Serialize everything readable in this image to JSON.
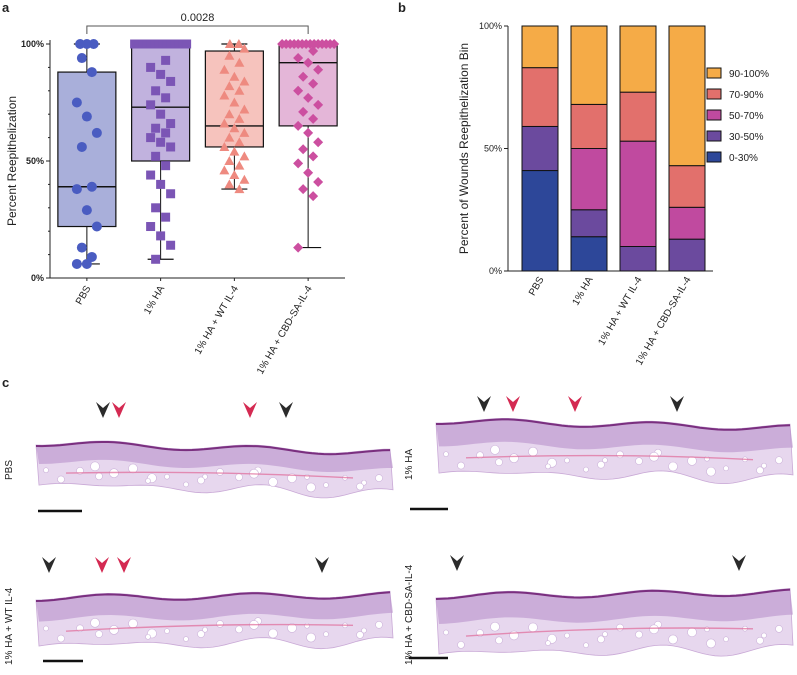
{
  "panel_labels": {
    "a": "a",
    "b": "b",
    "c": "c"
  },
  "chart_data": [
    {
      "type": "scatter",
      "subtype": "box-plot-with-points",
      "ylabel": "Percent Reepithelization",
      "xlabel": "",
      "ylim": [
        0,
        100
      ],
      "yticks": [
        {
          "value": 0,
          "label": "0%"
        },
        {
          "value": 50,
          "label": "50%"
        },
        {
          "value": 100,
          "label": "100%"
        }
      ],
      "categories": [
        "PBS",
        "1% HA",
        "1% HA + WT IL-4",
        "1% HA + CBD-SA-IL-4"
      ],
      "significance": {
        "from": 0,
        "to": 3,
        "label": "0.0028"
      },
      "series": [
        {
          "marker": "circle",
          "color": "#4a5cc1",
          "fill": "#9aa1d4",
          "box": {
            "min": 6,
            "q1": 22,
            "median": 39,
            "q3": 88,
            "max": 100
          },
          "values": [
            100,
            100,
            100,
            94,
            88,
            75,
            69,
            62,
            56,
            39,
            38,
            29,
            22,
            13,
            9,
            6,
            6
          ]
        },
        {
          "marker": "square",
          "color": "#7b55b5",
          "fill": "#b6a4d8",
          "box": {
            "min": 8,
            "q1": 50,
            "median": 73,
            "q3": 100,
            "max": 100
          },
          "values": [
            100,
            100,
            100,
            100,
            100,
            100,
            100,
            100,
            100,
            100,
            100,
            100,
            100,
            100,
            93,
            90,
            87,
            84,
            80,
            77,
            74,
            70,
            66,
            64,
            62,
            60,
            58,
            56,
            52,
            48,
            44,
            40,
            36,
            30,
            26,
            22,
            18,
            14,
            8
          ]
        },
        {
          "marker": "triangle",
          "color": "#ee8a80",
          "fill": "#f5b9b2",
          "box": {
            "min": 38,
            "q1": 56,
            "median": 65,
            "q3": 97,
            "max": 100
          },
          "values": [
            100,
            100,
            98,
            95,
            92,
            89,
            86,
            84,
            82,
            80,
            78,
            75,
            72,
            70,
            68,
            66,
            64,
            62,
            60,
            58,
            56,
            54,
            52,
            50,
            48,
            46,
            44,
            42,
            40,
            38
          ]
        },
        {
          "marker": "diamond",
          "color": "#cc4fa0",
          "fill": "#dfa9d1",
          "box": {
            "min": 13,
            "q1": 65,
            "median": 92,
            "q3": 100,
            "max": 100
          },
          "values": [
            100,
            100,
            100,
            100,
            100,
            100,
            100,
            100,
            100,
            100,
            100,
            100,
            100,
            100,
            97,
            94,
            92,
            89,
            86,
            83,
            80,
            77,
            74,
            71,
            68,
            65,
            62,
            58,
            55,
            52,
            49,
            45,
            41,
            38,
            35,
            13
          ]
        }
      ]
    },
    {
      "type": "bar",
      "subtype": "stacked-percent",
      "ylabel": "Percent of Wounds Reepithelization Bin",
      "xlabel": "",
      "ylim": [
        0,
        100
      ],
      "yticks": [
        {
          "value": 0,
          "label": "0%"
        },
        {
          "value": 50,
          "label": "50%"
        },
        {
          "value": 100,
          "label": "100%"
        }
      ],
      "categories": [
        "PBS",
        "1% HA",
        "1% HA + WT IL-4",
        "1% HA + CBD-SA-IL-4"
      ],
      "legend_position": "right",
      "series": [
        {
          "name": "0-30%",
          "color": "#2d4799",
          "values": [
            41,
            14,
            0,
            0
          ]
        },
        {
          "name": "30-50%",
          "color": "#6b4a9e",
          "values": [
            18,
            11,
            10,
            13
          ]
        },
        {
          "name": "50-70%",
          "color": "#c04a9f",
          "values": [
            0,
            25,
            43,
            13
          ]
        },
        {
          "name": "70-90%",
          "color": "#e2706c",
          "values": [
            24,
            18,
            20,
            17
          ]
        },
        {
          "name": "90-100%",
          "color": "#f5ab47",
          "values": [
            17,
            32,
            27,
            57
          ]
        }
      ]
    }
  ],
  "histology": [
    {
      "label": "PBS",
      "arrows": [
        {
          "color": "#2b2b2b"
        },
        {
          "color": "#d42a52"
        },
        {
          "color": "#d42a52"
        },
        {
          "color": "#2b2b2b"
        }
      ]
    },
    {
      "label": "1% HA",
      "arrows": [
        {
          "color": "#2b2b2b"
        },
        {
          "color": "#d42a52"
        },
        {
          "color": "#d42a52"
        },
        {
          "color": "#2b2b2b"
        }
      ]
    },
    {
      "label": "1% HA + WT IL-4",
      "arrows": [
        {
          "color": "#2b2b2b"
        },
        {
          "color": "#d42a52"
        },
        {
          "color": "#d42a52"
        },
        {
          "color": "#2b2b2b"
        }
      ]
    },
    {
      "label": "1% HA + CBD-SA-IL-4",
      "arrows": [
        {
          "color": "#2b2b2b"
        },
        {
          "color": "#2b2b2b"
        }
      ]
    }
  ]
}
